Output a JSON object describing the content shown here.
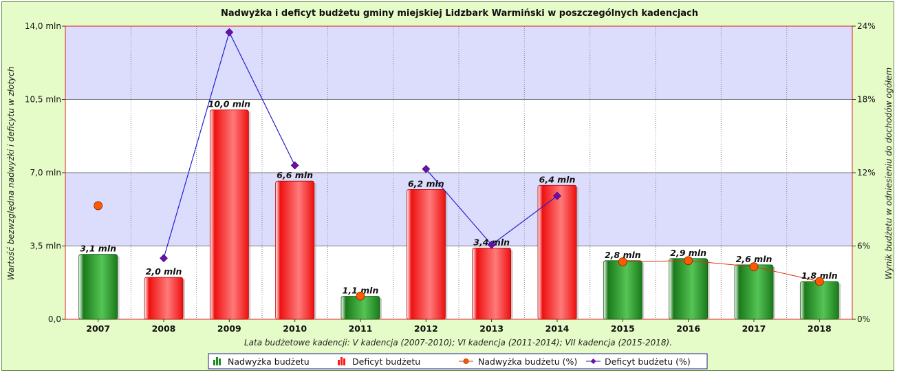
{
  "chart_data": {
    "type": "bar",
    "title": "Nadwyżka i deficyt budżetu gminy miejskiej Lidzbark Warmiński w poszczególnych kadencjach",
    "categories": [
      "2007",
      "2008",
      "2009",
      "2010",
      "2011",
      "2012",
      "2013",
      "2014",
      "2015",
      "2016",
      "2017",
      "2018"
    ],
    "bars": {
      "values": [
        3.1,
        2.0,
        10.0,
        6.6,
        1.1,
        6.2,
        3.4,
        6.4,
        2.8,
        2.9,
        2.6,
        1.8
      ],
      "kind": [
        "surplus",
        "deficit",
        "deficit",
        "deficit",
        "surplus",
        "deficit",
        "deficit",
        "deficit",
        "surplus",
        "surplus",
        "surplus",
        "surplus"
      ],
      "labels": [
        "3,1 mln",
        "2,0 mln",
        "10,0 mln",
        "6,6 mln",
        "1,1 mln",
        "6,2 mln",
        "3,4 mln",
        "6,4 mln",
        "2,8 mln",
        "2,9 mln",
        "2,6 mln",
        "1,8 mln"
      ]
    },
    "surplus_pct": {
      "name": "Nadwyżka budżetu (%)",
      "points": [
        [
          "2007",
          9.3
        ],
        [
          "2011",
          1.9
        ],
        [
          "2015",
          4.7
        ],
        [
          "2016",
          4.8
        ],
        [
          "2017",
          4.3
        ],
        [
          "2018",
          3.1
        ]
      ],
      "color": "#ff5a00"
    },
    "deficit_pct": {
      "name": "Deficyt budżetu (%)",
      "segments": [
        [
          [
            "2008",
            5.0
          ],
          [
            "2009",
            23.5
          ],
          [
            "2010",
            12.6
          ]
        ],
        [
          [
            "2012",
            12.3
          ],
          [
            "2013",
            6.1
          ],
          [
            "2014",
            10.1
          ]
        ]
      ],
      "color": "#2020d0"
    },
    "left_axis": {
      "label": "Wartość bezwzględna nadwyżki i deficytu w złotych",
      "range": [
        0,
        14
      ],
      "ticks": [
        0,
        3.5,
        7,
        10.5,
        14
      ],
      "tick_labels": [
        "0,0",
        "3,5 mln",
        "7,0 mln",
        "10,5 mln",
        "14,0 mln"
      ]
    },
    "right_axis": {
      "label": "Wynik budżetu w odniesieniu do dochodów ogółem",
      "range": [
        0,
        24
      ],
      "ticks": [
        0,
        6,
        12,
        18,
        24
      ],
      "tick_labels": [
        "0%",
        "6%",
        "12%",
        "18%",
        "24%"
      ]
    },
    "x_note": "Lata budżetowe kadencji: V kadencja (2007-2010); VI kadencja (2011-2014); VII kadencja (2015-2018).",
    "legend": {
      "position": "bottom",
      "items": [
        {
          "label": "Nadwyżka budżetu",
          "icon": "bar-green-icon"
        },
        {
          "label": "Deficyt budżetu",
          "icon": "bar-red-icon"
        },
        {
          "label": "Nadwyżka budżetu (%)",
          "icon": "line-orange-dot-icon"
        },
        {
          "label": "Deficyt budżetu (%)",
          "icon": "line-blue-diamond-icon"
        }
      ]
    },
    "colors": {
      "surplus": "#1f8a1f",
      "deficit": "#ff1a1a",
      "band": "#dcdcfc",
      "axis_border": "#e02020",
      "surplus_line": "#e03010",
      "deficit_line": "#2020d0",
      "deficit_marker": "#6a10a8"
    },
    "grid": true
  }
}
